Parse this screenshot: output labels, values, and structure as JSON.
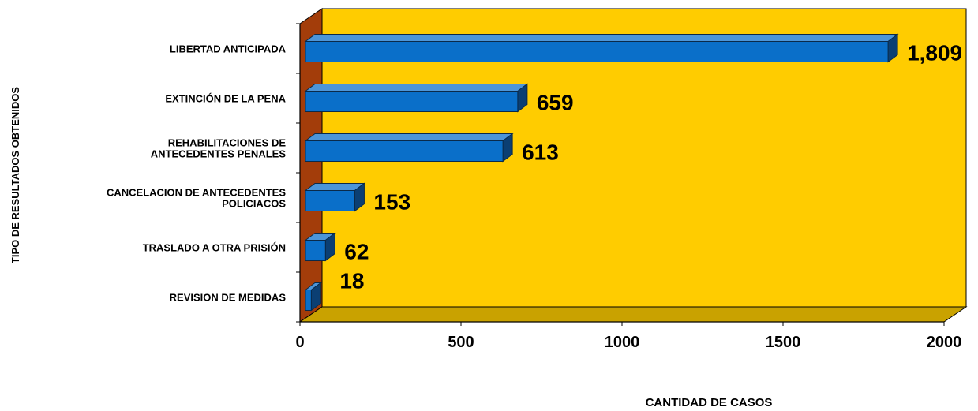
{
  "chart_data": {
    "type": "bar",
    "orientation": "horizontal",
    "style": "3d",
    "categories": [
      [
        "LIBERTAD ANTICIPADA"
      ],
      [
        "EXTINCIÓN DE LA PENA"
      ],
      [
        "REHABILITACIONES DE",
        "ANTECEDENTES PENALES"
      ],
      [
        "CANCELACION DE ANTECEDENTES",
        "POLICIACOS"
      ],
      [
        "TRASLADO A OTRA PRISIÓN"
      ],
      [
        "REVISION DE MEDIDAS"
      ]
    ],
    "values": [
      1809,
      659,
      613,
      153,
      62,
      18
    ],
    "data_labels": [
      "1,809",
      "659",
      "613",
      "153",
      "62",
      "18"
    ],
    "xlabel": "CANTIDAD DE CASOS",
    "ylabel": "TIPO DE RESULTADOS OBTENIDOS",
    "xlim": [
      0,
      2000
    ],
    "xticks": [
      0,
      500,
      1000,
      1500,
      2000
    ],
    "grid": false,
    "legend": "none"
  },
  "colors": {
    "plot_back_wall": "#FFCC00",
    "plot_floor": "#C9A200",
    "side_wall": "#A33D0A",
    "bar_front": "#0A6FC9",
    "bar_top": "#4C95D8",
    "bar_side": "#0B3F73",
    "bar_stroke": "#0A2A4A"
  }
}
